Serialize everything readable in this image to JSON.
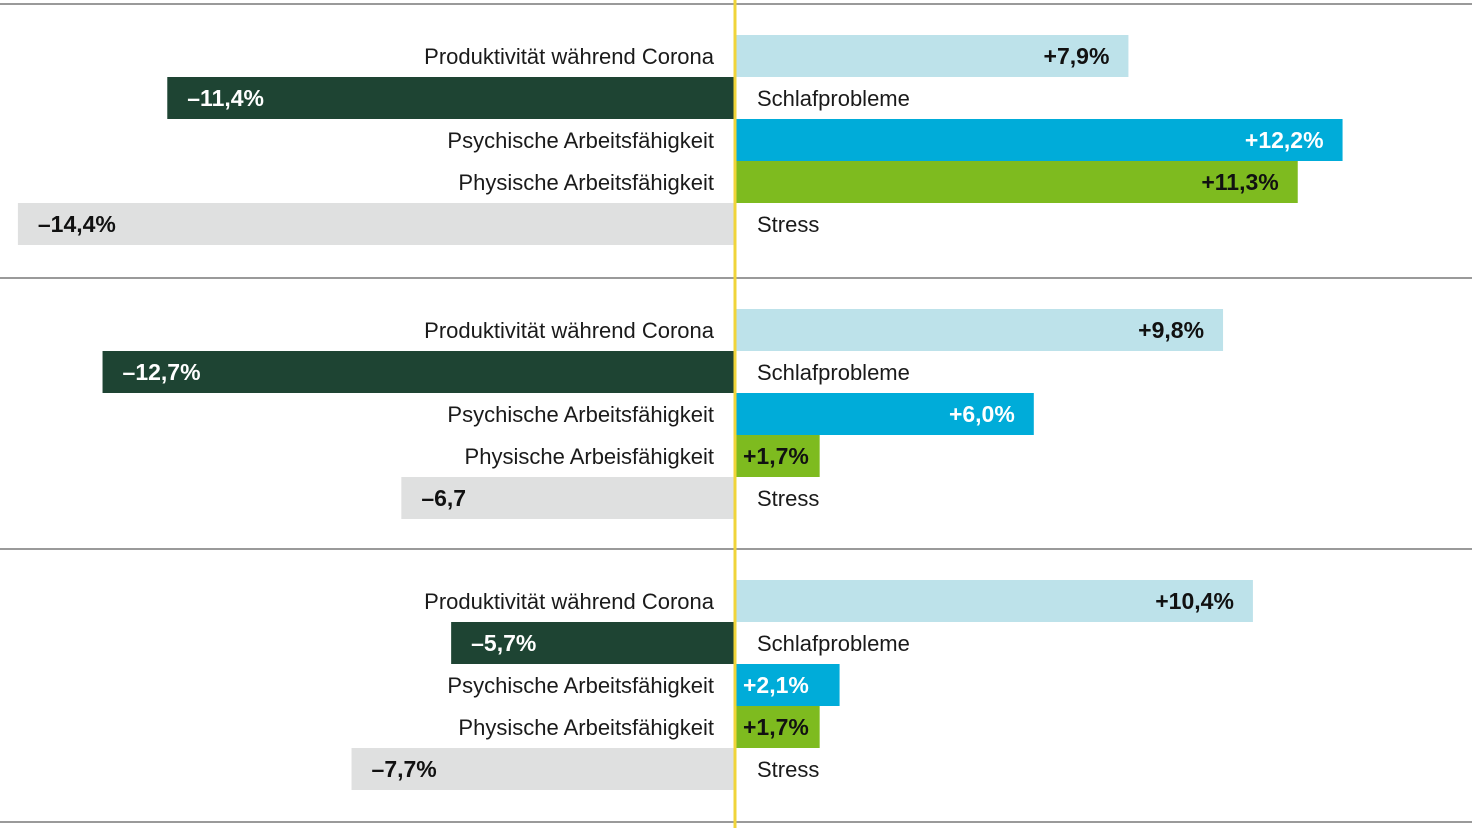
{
  "chart_data": {
    "type": "bar",
    "orientation": "horizontal-diverging",
    "unit": "%",
    "xlim": [
      -14.8,
      14.8
    ],
    "grid": false,
    "colors": {
      "Produktivität während Corona": "#bde2ea",
      "Schlafprobleme": "#1e4433",
      "Psychische Arbeitsfähigkeit": "#00acd9",
      "Physische Arbeitsfähigkeit": "#7ebb1f",
      "Stress": "#dfe0e0",
      "center_line": "#f0d43a",
      "divider": "#9a9a9a"
    },
    "panels": [
      {
        "categories": [
          "Produktivität während Corona",
          "Schlafprobleme",
          "Psychische Arbeitsfähigkeit",
          "Physische Arbeitsfähigkeit",
          "Stress"
        ],
        "values": [
          7.9,
          -11.4,
          12.2,
          11.3,
          -14.4
        ],
        "labels": [
          "+7,9%",
          "–11,4%",
          "+12,2%",
          "+11,3%",
          "–14,4%"
        ]
      },
      {
        "categories": [
          "Produktivität während Corona",
          "Schlafprobleme",
          "Psychische Arbeitsfähigkeit",
          "Physische Arbeisfähigkeit",
          "Stress"
        ],
        "values": [
          9.8,
          -12.7,
          6.0,
          1.7,
          -6.7
        ],
        "labels": [
          "+9,8%",
          "–12,7%",
          "+6,0%",
          "+1,7%",
          "–6,7"
        ]
      },
      {
        "categories": [
          "Produktivität während Corona",
          "Schlafprobleme",
          "Psychische Arbeitsfähigkeit",
          "Physische Arbeitsfähigkeit",
          "Stress"
        ],
        "values": [
          10.4,
          -5.7,
          2.1,
          1.7,
          -7.7
        ],
        "labels": [
          "+10,4%",
          "–5,7%",
          "+2,1%",
          "+1,7%",
          "–7,7%"
        ]
      }
    ]
  }
}
